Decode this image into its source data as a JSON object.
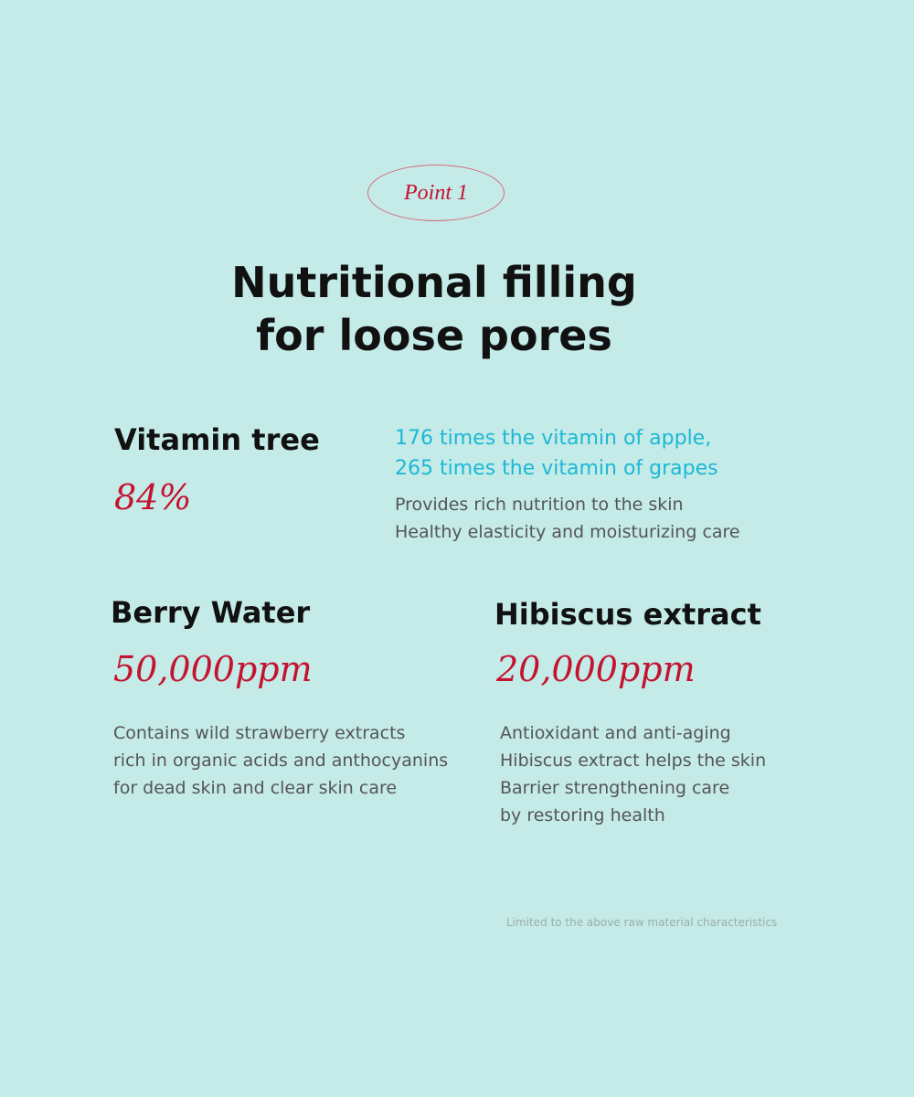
{
  "badge": "Point 1",
  "title": [
    "Nutritional filling",
    "for loose pores"
  ],
  "items": [
    {
      "name": "Vitamin tree",
      "amount": "84%",
      "highlight": [
        "176 times the vitamin of apple,",
        "265 times the vitamin of grapes"
      ],
      "description": [
        "Provides rich nutrition to the skin",
        "Healthy elasticity and moisturizing care"
      ]
    },
    {
      "name": "Berry Water",
      "amount": "50,000ppm",
      "description": [
        "Contains wild strawberry extracts",
        "rich in organic acids and anthocyanins",
        "for dead skin and clear skin care"
      ]
    },
    {
      "name": "Hibiscus extract",
      "amount": "20,000ppm",
      "description": [
        "Antioxidant and anti-aging",
        "Hibiscus extract helps the skin",
        "Barrier strengthening care",
        "by restoring health"
      ]
    }
  ],
  "footnote": "Limited to the above raw material characteristics"
}
